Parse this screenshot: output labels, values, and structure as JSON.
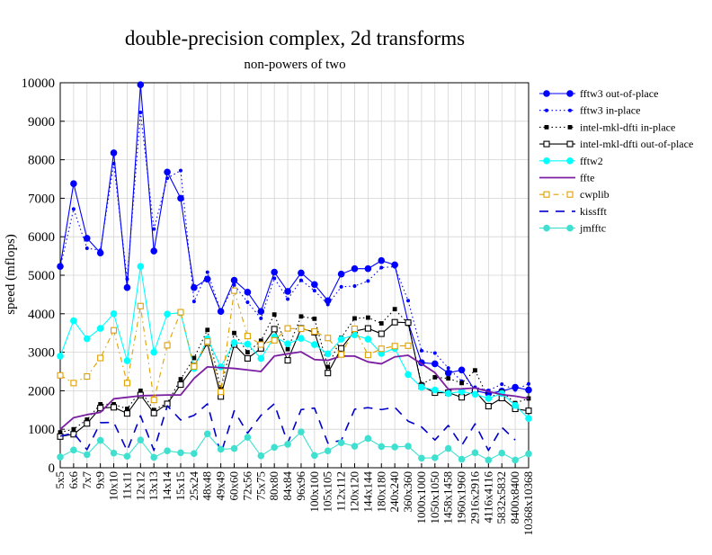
{
  "chart_data": {
    "type": "line",
    "title": "double-precision complex, 2d transforms",
    "subtitle": "non-powers of two",
    "ylabel": "speed (mflops)",
    "xlabel": "",
    "ylim": [
      0,
      10000
    ],
    "yticks": [
      0,
      1000,
      2000,
      3000,
      4000,
      5000,
      6000,
      7000,
      8000,
      9000,
      10000
    ],
    "grid": true,
    "legend_position": "right",
    "categories": [
      "5x5",
      "6x6",
      "7x7",
      "9x9",
      "10x10",
      "11x11",
      "12x12",
      "13x13",
      "14x14",
      "15x15",
      "25x24",
      "48x48",
      "49x49",
      "60x60",
      "72x56",
      "75x75",
      "80x80",
      "84x84",
      "96x96",
      "100x100",
      "105x105",
      "112x112",
      "120x120",
      "144x144",
      "180x180",
      "240x240",
      "360x360",
      "1000x1000",
      "1050x1050",
      "1458x1458",
      "1960x1960",
      "2916x2916",
      "4116x4116",
      "5832x5832",
      "8400x8400",
      "10368x10368"
    ],
    "series": [
      {
        "name": "fftw3 out-of-place",
        "color": "#0000ff",
        "line": "solid",
        "marker": "circle",
        "values": [
          5230,
          7380,
          5960,
          5580,
          8180,
          4680,
          9950,
          5630,
          7680,
          7000,
          4680,
          4900,
          4060,
          4870,
          4560,
          4060,
          5080,
          4580,
          5060,
          4760,
          4340,
          5030,
          5170,
          5170,
          5380,
          5270,
          3770,
          2730,
          2700,
          2460,
          2540,
          2000,
          1930,
          1990,
          2090,
          2020
        ]
      },
      {
        "name": "fftw3 in-place",
        "color": "#0000ff",
        "line": "dotted",
        "marker": "dot",
        "values": [
          5200,
          6720,
          5700,
          5650,
          7900,
          4900,
          9230,
          6200,
          7520,
          7720,
          4320,
          5080,
          4070,
          4750,
          4300,
          3880,
          4920,
          4380,
          4870,
          4600,
          4240,
          4700,
          4720,
          4850,
          5200,
          5220,
          4340,
          3040,
          2980,
          2590,
          2250,
          2090,
          2010,
          2170,
          2020,
          2180
        ]
      },
      {
        "name": "intel-mkl-dfti in-place",
        "color": "#000000",
        "line": "dotted",
        "marker": "square-filled",
        "values": [
          920,
          1000,
          1250,
          1650,
          1650,
          1530,
          2000,
          1500,
          1680,
          2300,
          2850,
          3580,
          2050,
          3500,
          3000,
          3300,
          3980,
          3080,
          3930,
          3870,
          2620,
          3380,
          3880,
          3900,
          3750,
          4120,
          3740,
          2170,
          2350,
          2320,
          2200,
          2530,
          1800,
          1980,
          1680,
          1800
        ]
      },
      {
        "name": "intel-mkl-dfti out-of-place",
        "color": "#000000",
        "line": "solid",
        "marker": "square-open",
        "values": [
          810,
          870,
          1150,
          1550,
          1570,
          1410,
          1890,
          1420,
          1660,
          2160,
          2640,
          3240,
          1850,
          3200,
          2840,
          3100,
          3600,
          2790,
          3620,
          3520,
          2460,
          3100,
          3550,
          3620,
          3480,
          3780,
          3770,
          2120,
          1950,
          1950,
          1830,
          1990,
          1600,
          1810,
          1530,
          1480
        ]
      },
      {
        "name": "fftw2",
        "color": "#00ffff",
        "line": "solid",
        "marker": "circle",
        "values": [
          2900,
          3820,
          3350,
          3620,
          4000,
          2780,
          5230,
          3000,
          3990,
          4030,
          2580,
          3350,
          2620,
          3250,
          3210,
          2840,
          3400,
          3220,
          3360,
          3200,
          2960,
          3340,
          3450,
          3340,
          2970,
          3100,
          2420,
          2090,
          2020,
          1930,
          1980,
          1910,
          1800,
          1930,
          1620,
          1280
        ]
      },
      {
        "name": "ffte",
        "color": "#7b1fa2",
        "line": "solid",
        "marker": "none",
        "values": [
          1000,
          1300,
          1380,
          1440,
          1790,
          1830,
          1870,
          1880,
          1890,
          1890,
          2320,
          2620,
          2600,
          2580,
          2540,
          2500,
          2900,
          2960,
          3010,
          2810,
          2790,
          2900,
          2900,
          2750,
          2700,
          2880,
          2920,
          2700,
          2470,
          2040,
          2050,
          2070,
          1980,
          1900,
          1860,
          1800
        ]
      },
      {
        "name": "cwplib",
        "color": "#e0a000",
        "line": "dashdot",
        "marker": "square-open",
        "values": [
          2400,
          2200,
          2370,
          2850,
          3570,
          2200,
          4200,
          1760,
          3180,
          4040,
          2630,
          3280,
          1970,
          4600,
          3420,
          3200,
          3310,
          3620,
          3610,
          3540,
          3370,
          2940,
          3610,
          2930,
          3090,
          3160,
          3170,
          null,
          null,
          null,
          null,
          null,
          null,
          null,
          null,
          null
        ]
      },
      {
        "name": "kissfft",
        "color": "#0000cc",
        "line": "dashed",
        "marker": "none",
        "values": [
          820,
          900,
          470,
          1170,
          1180,
          440,
          1350,
          450,
          1610,
          1240,
          1360,
          1660,
          350,
          1480,
          900,
          1360,
          1660,
          640,
          1510,
          1550,
          640,
          710,
          1520,
          1560,
          1510,
          1570,
          1210,
          1060,
          720,
          1100,
          580,
          1140,
          450,
          1050,
          720,
          null
        ]
      },
      {
        "name": "jmfftc",
        "color": "#40e0d0",
        "line": "solid",
        "marker": "circle",
        "values": [
          280,
          460,
          340,
          710,
          380,
          300,
          720,
          270,
          440,
          390,
          370,
          880,
          480,
          500,
          790,
          310,
          530,
          610,
          930,
          320,
          440,
          650,
          560,
          760,
          550,
          540,
          560,
          250,
          260,
          500,
          220,
          390,
          200,
          380,
          200,
          360
        ]
      }
    ]
  }
}
